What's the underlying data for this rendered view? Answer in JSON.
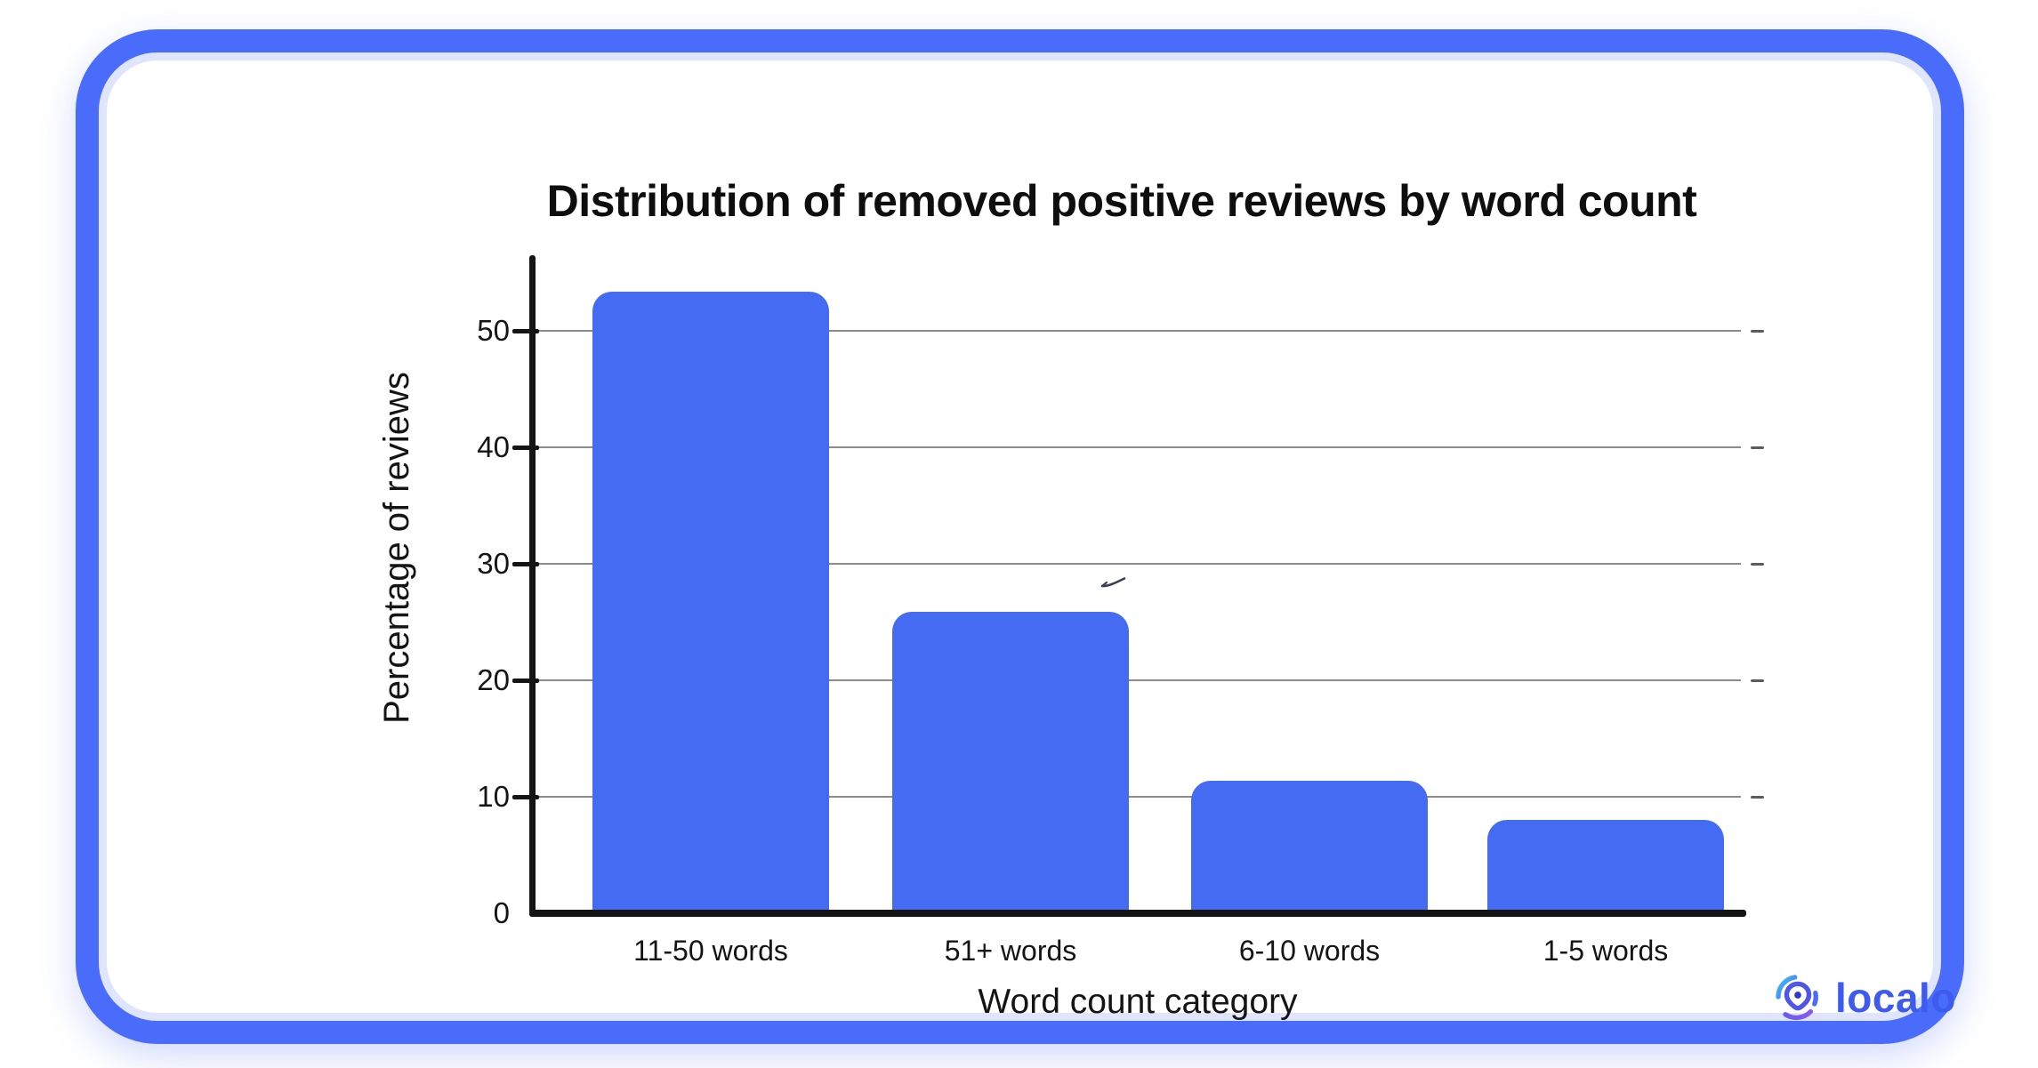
{
  "frame": {
    "border_color": "#4a6cfb",
    "inner_ring_color": "#dfe5fd",
    "background": "#ffffff"
  },
  "chart_data": {
    "type": "bar",
    "title": "Distribution of removed positive reviews by word count",
    "xlabel": "Word count category",
    "ylabel": "Percentage of reviews",
    "categories": [
      "11-50 words",
      "51+ words",
      "6-10 words",
      "1-5 words"
    ],
    "values": [
      53.4,
      25.9,
      11.4,
      8.0
    ],
    "yticks": [
      0,
      10,
      20,
      30,
      40,
      50
    ],
    "ylim": [
      0,
      56.5
    ],
    "grid": "horizontal",
    "legend": "none",
    "bar_color": "#466bf3",
    "gridline_color": "#8c8c8c",
    "axis_color": "#151515",
    "style": "hand-drawn (xkcd-like), rounded bar tops"
  },
  "branding": {
    "logo_text": "localo",
    "logo_text_color": "#3d5bee",
    "icon": "localo-pin-swirl-icon",
    "icon_gradient": [
      "#3fc1f2",
      "#4a6cf7",
      "#8a5af5"
    ]
  }
}
